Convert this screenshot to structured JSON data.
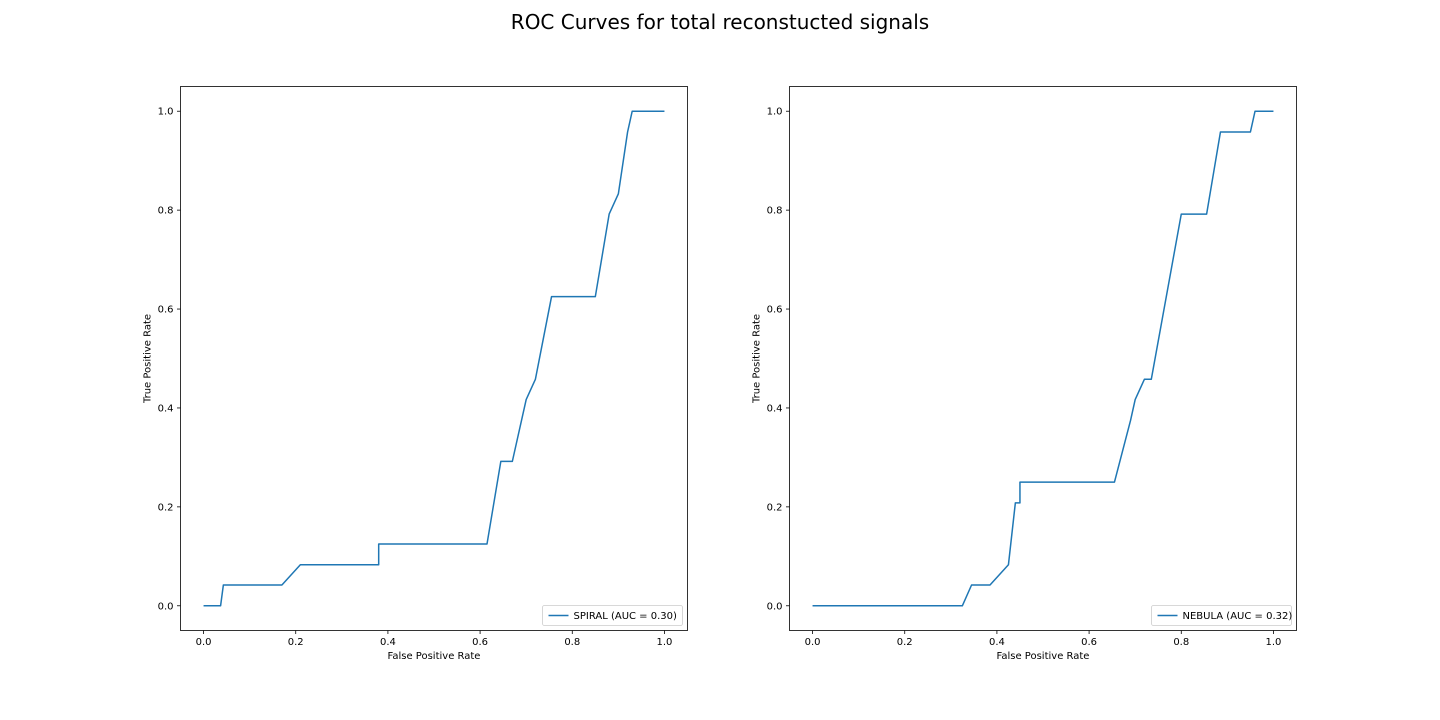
{
  "figure": {
    "title": "ROC Curves for total reconstucted signals"
  },
  "chart_data": [
    {
      "type": "line",
      "title": "",
      "xlabel": "False Positive Rate",
      "ylabel": "True Positive Rate",
      "xlim": [
        -0.05,
        1.05
      ],
      "ylim": [
        -0.05,
        1.05
      ],
      "xticks": [
        0.0,
        0.2,
        0.4,
        0.6,
        0.8,
        1.0
      ],
      "yticks": [
        0.0,
        0.2,
        0.4,
        0.6,
        0.8,
        1.0
      ],
      "xtick_labels": [
        "0.0",
        "0.2",
        "0.4",
        "0.6",
        "0.8",
        "1.0"
      ],
      "ytick_labels": [
        "0.0",
        "0.2",
        "0.4",
        "0.6",
        "0.8",
        "1.0"
      ],
      "grid": false,
      "legend_position": "lower-right",
      "series_color": "#1f77b4",
      "series": [
        {
          "name": "SPIRAL (AUC = 0.30)",
          "x": [
            0.0,
            0.037,
            0.043,
            0.17,
            0.21,
            0.38,
            0.38,
            0.615,
            0.645,
            0.67,
            0.7,
            0.72,
            0.755,
            0.85,
            0.88,
            0.9,
            0.92,
            0.93,
            1.0
          ],
          "y": [
            0.0,
            0.0,
            0.042,
            0.042,
            0.083,
            0.083,
            0.125,
            0.125,
            0.292,
            0.292,
            0.417,
            0.458,
            0.625,
            0.625,
            0.792,
            0.833,
            0.958,
            1.0,
            1.0
          ]
        }
      ]
    },
    {
      "type": "line",
      "title": "",
      "xlabel": "False Positive Rate",
      "ylabel": "True Positive Rate",
      "xlim": [
        -0.05,
        1.05
      ],
      "ylim": [
        -0.05,
        1.05
      ],
      "xticks": [
        0.0,
        0.2,
        0.4,
        0.6,
        0.8,
        1.0
      ],
      "yticks": [
        0.0,
        0.2,
        0.4,
        0.6,
        0.8,
        1.0
      ],
      "xtick_labels": [
        "0.0",
        "0.2",
        "0.4",
        "0.6",
        "0.8",
        "1.0"
      ],
      "ytick_labels": [
        "0.0",
        "0.2",
        "0.4",
        "0.6",
        "0.8",
        "1.0"
      ],
      "grid": false,
      "legend_position": "lower-right",
      "series_color": "#1f77b4",
      "series": [
        {
          "name": "NEBULA (AUC = 0.32)",
          "x": [
            0.0,
            0.325,
            0.345,
            0.385,
            0.425,
            0.44,
            0.45,
            0.45,
            0.655,
            0.69,
            0.7,
            0.72,
            0.735,
            0.8,
            0.855,
            0.885,
            0.95,
            0.96,
            1.0
          ],
          "y": [
            0.0,
            0.0,
            0.042,
            0.042,
            0.083,
            0.208,
            0.208,
            0.25,
            0.25,
            0.375,
            0.417,
            0.458,
            0.458,
            0.792,
            0.792,
            0.958,
            0.958,
            1.0,
            1.0
          ]
        }
      ]
    }
  ]
}
